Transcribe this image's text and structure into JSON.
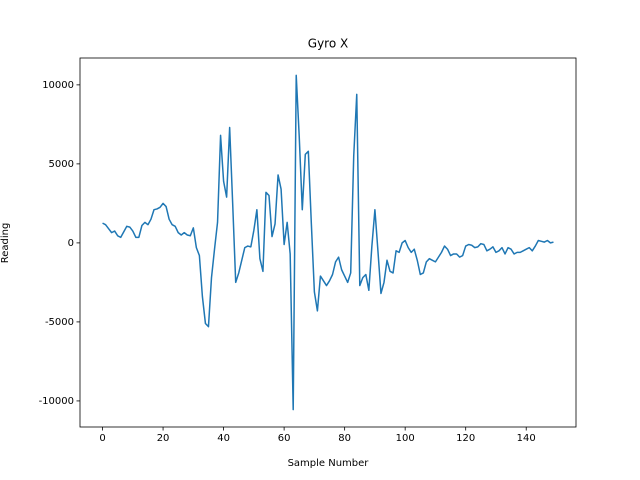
{
  "chart_data": {
    "type": "line",
    "title": "Gyro X",
    "x_label": "Sample Number",
    "y_label": "Reading",
    "color": "#1f77b4",
    "x": [
      0,
      1,
      2,
      3,
      4,
      5,
      6,
      7,
      8,
      9,
      10,
      11,
      12,
      13,
      14,
      15,
      16,
      17,
      18,
      19,
      20,
      21,
      22,
      23,
      24,
      25,
      26,
      27,
      28,
      29,
      30,
      31,
      32,
      33,
      34,
      35,
      36,
      37,
      38,
      39,
      40,
      41,
      42,
      43,
      44,
      45,
      46,
      47,
      48,
      49,
      50,
      51,
      52,
      53,
      54,
      55,
      56,
      57,
      58,
      59,
      60,
      61,
      62,
      63,
      64,
      65,
      66,
      67,
      68,
      69,
      70,
      71,
      72,
      73,
      74,
      75,
      76,
      77,
      78,
      79,
      80,
      81,
      82,
      83,
      84,
      85,
      86,
      87,
      88,
      89,
      90,
      91,
      92,
      93,
      94,
      95,
      96,
      97,
      98,
      99,
      100,
      101,
      102,
      103,
      104,
      105,
      106,
      107,
      108,
      109,
      110,
      111,
      112,
      113,
      114,
      115,
      116,
      117,
      118,
      119,
      120,
      121,
      122,
      123,
      124,
      125,
      126,
      127,
      128,
      129,
      130,
      131,
      132,
      133,
      134,
      135,
      136,
      137,
      138,
      139,
      140,
      141,
      142,
      143,
      144,
      145,
      146,
      147,
      148,
      149
    ],
    "values": [
      1250,
      1150,
      900,
      650,
      750,
      450,
      350,
      700,
      1050,
      1000,
      750,
      350,
      350,
      1100,
      1300,
      1150,
      1500,
      2100,
      2150,
      2250,
      2500,
      2300,
      1500,
      1150,
      1050,
      650,
      500,
      650,
      500,
      450,
      950,
      -300,
      -800,
      -3400,
      -5100,
      -5300,
      -2200,
      -400,
      1300,
      6800,
      3900,
      2900,
      7300,
      2500,
      -2500,
      -1900,
      -1100,
      -300,
      -200,
      -250,
      800,
      2100,
      -1000,
      -1800,
      3200,
      3000,
      400,
      1200,
      4300,
      3400,
      -100,
      1300,
      -700,
      -10550,
      10600,
      6700,
      2100,
      5600,
      5800,
      1200,
      -3100,
      -4300,
      -2100,
      -2400,
      -2700,
      -2400,
      -2000,
      -1200,
      -900,
      -1700,
      -2100,
      -2500,
      -1900,
      5500,
      9400,
      -2700,
      -2200,
      -2000,
      -3000,
      -200,
      2100,
      -500,
      -3200,
      -2500,
      -1100,
      -1800,
      -1900,
      -500,
      -600,
      0,
      150,
      -300,
      -600,
      -400,
      -1100,
      -2000,
      -1900,
      -1200,
      -1000,
      -1100,
      -1200,
      -900,
      -600,
      -200,
      -400,
      -800,
      -700,
      -700,
      -900,
      -800,
      -200,
      -100,
      -150,
      -300,
      -250,
      -50,
      -100,
      -500,
      -400,
      -250,
      -600,
      -500,
      -300,
      -700,
      -300,
      -400,
      -700,
      -600,
      -600,
      -500,
      -400,
      -300,
      -500,
      -200,
      150,
      100,
      50,
      150,
      0,
      50
    ],
    "xlim": [
      -7.45,
      156.45
    ],
    "xticks": [
      0,
      20,
      40,
      60,
      80,
      100,
      120,
      140
    ],
    "ylim": [
      -11650,
      11700
    ],
    "yticks": [
      -10000,
      -5000,
      0,
      5000,
      10000
    ]
  }
}
